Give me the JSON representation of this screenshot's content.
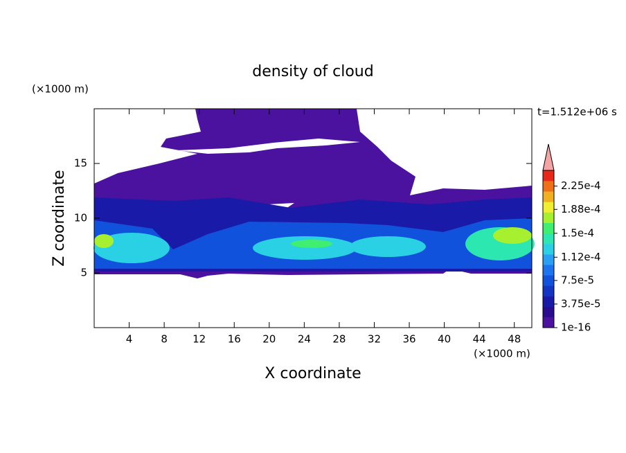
{
  "chart_data": {
    "type": "contour",
    "title": "density of cloud",
    "x_label": "X coordinate",
    "y_label": "Z coordinate",
    "x_unit": "(×1000 m)",
    "y_unit": "(×1000 m)",
    "annotation": "t=1.512e+06 s",
    "xlim": [
      0,
      50
    ],
    "xticks": [
      4,
      8,
      12,
      16,
      20,
      24,
      28,
      32,
      36,
      40,
      44,
      48
    ],
    "ylim": [
      0,
      20
    ],
    "yticks": [
      5,
      10,
      15
    ],
    "clim": [
      0,
      0.00025
    ],
    "colorbar_ticks": [
      {
        "value": 1e-16,
        "label": "1e-16"
      },
      {
        "value": 3.75e-05,
        "label": "3.75e-5"
      },
      {
        "value": 7.5e-05,
        "label": "7.5e-5"
      },
      {
        "value": 0.000112,
        "label": "1.12e-4"
      },
      {
        "value": 0.00015,
        "label": "1.5e-4"
      },
      {
        "value": 0.000188,
        "label": "1.88e-4"
      },
      {
        "value": 0.000225,
        "label": "2.25e-4"
      }
    ],
    "colors": [
      "#4b12a0",
      "#2a0c90",
      "#1a1aa8",
      "#1434c4",
      "#1052dc",
      "#1c74f0",
      "#2aa0f4",
      "#2cd0e4",
      "#2ce8b0",
      "#40ee70",
      "#a6f030",
      "#f0ee30",
      "#f0b020",
      "#f07018",
      "#e82818"
    ],
    "extend_color": "#f4a4a4"
  }
}
